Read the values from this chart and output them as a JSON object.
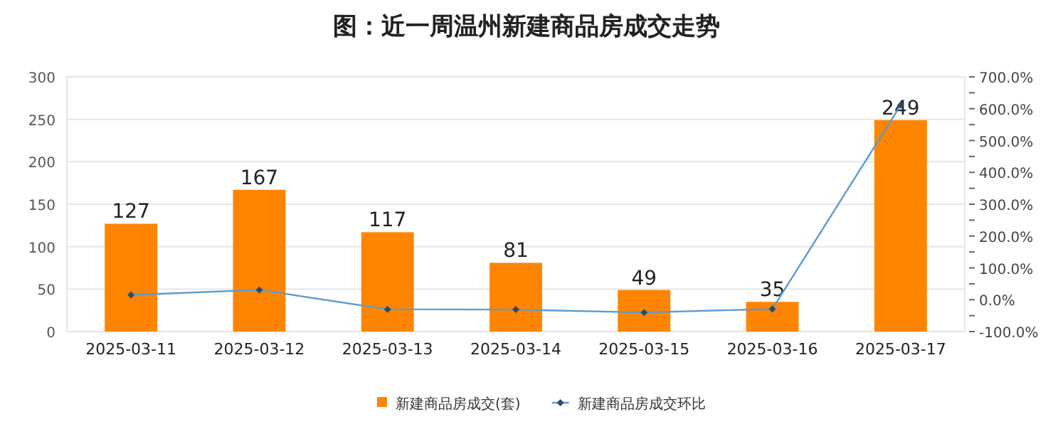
{
  "chart_data": {
    "type": "bar",
    "title": "图：近一周温州新建商品房成交走势",
    "categories": [
      "2025-03-11",
      "2025-03-12",
      "2025-03-13",
      "2025-03-14",
      "2025-03-15",
      "2025-03-16",
      "2025-03-17"
    ],
    "series": [
      {
        "name": "新建商品房成交(套)",
        "color": "#ff8500",
        "values": [
          127,
          167,
          117,
          81,
          49,
          35,
          249
        ],
        "value_labels": [
          "127",
          "167",
          "117",
          "81",
          "49",
          "35",
          "249"
        ]
      },
      {
        "name": "新建商品房成交环比",
        "type": "line",
        "axis": "y2",
        "color": "#5b9bd5",
        "marker": "diamond",
        "values": [
          15,
          31,
          -30,
          -31,
          -40,
          -29,
          611
        ]
      }
    ],
    "ylim": [
      0,
      300
    ],
    "yticks": [
      0,
      50,
      100,
      150,
      200,
      250,
      300
    ],
    "y2lim": [
      -100,
      700
    ],
    "y2ticks": [
      {
        "value": -100,
        "label": "-100.0%"
      },
      {
        "value": -50,
        "label": null
      },
      {
        "value": 0,
        "label": "0.0%"
      },
      {
        "value": 50,
        "label": null
      },
      {
        "value": 100,
        "label": "100.0%"
      },
      {
        "value": 150,
        "label": null
      },
      {
        "value": 200,
        "label": "200.0%"
      },
      {
        "value": 250,
        "label": null
      },
      {
        "value": 300,
        "label": "300.0%"
      },
      {
        "value": 350,
        "label": null
      },
      {
        "value": 400,
        "label": "400.0%"
      },
      {
        "value": 450,
        "label": null
      },
      {
        "value": 500,
        "label": "500.0%"
      },
      {
        "value": 550,
        "label": null
      },
      {
        "value": 600,
        "label": "600.0%"
      },
      {
        "value": 650,
        "label": null
      },
      {
        "value": 700,
        "label": "700.0%"
      }
    ],
    "grid": "y",
    "legend": "bottom"
  }
}
